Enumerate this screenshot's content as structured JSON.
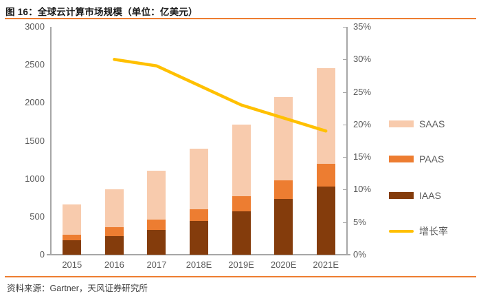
{
  "header": {
    "title": "图 16：全球云计算市场规模（单位：亿美元）"
  },
  "footer": {
    "source": "资料来源：Gartner，天风证券研究所"
  },
  "colors": {
    "saas": "#F8CBAD",
    "paas": "#ED7D31",
    "iaas": "#843C0C",
    "growth_line": "#FFC000",
    "axis": "#A6A6A6",
    "tick_label": "#595959",
    "accent_rule": "#ED7D31"
  },
  "chart_data": {
    "type": "bar",
    "subtype": "stacked-bars-with-line",
    "title": "图 16：全球云计算市场规模（单位：亿美元）",
    "categories": [
      "2015",
      "2016",
      "2017",
      "2018E",
      "2019E",
      "2020E",
      "2021E"
    ],
    "series": [
      {
        "name": "IAAS",
        "axis": "left",
        "color": "#843C0C",
        "values": [
          190,
          245,
          330,
          440,
          575,
          730,
          900
        ]
      },
      {
        "name": "PAAS",
        "axis": "left",
        "color": "#ED7D31",
        "values": [
          70,
          115,
          130,
          160,
          195,
          250,
          300
        ]
      },
      {
        "name": "SAAS",
        "axis": "left",
        "color": "#F8CBAD",
        "values": [
          400,
          505,
          645,
          800,
          940,
          1095,
          1260
        ]
      }
    ],
    "totals": [
      660,
      865,
      1105,
      1400,
      1710,
      2075,
      2460
    ],
    "line_series": {
      "name": "增长率",
      "axis": "right",
      "color": "#FFC000",
      "values": [
        null,
        30,
        29,
        26,
        23,
        21,
        19
      ],
      "unit": "%"
    },
    "left_axis": {
      "min": 0,
      "max": 3000,
      "step": 500,
      "tick_labels": [
        "0",
        "500",
        "1000",
        "1500",
        "2000",
        "2500",
        "3000"
      ]
    },
    "right_axis": {
      "min": 0,
      "max": 35,
      "step": 5,
      "tick_labels": [
        "0%",
        "5%",
        "10%",
        "15%",
        "20%",
        "25%",
        "30%",
        "35%"
      ]
    },
    "legend": [
      "SAAS",
      "PAAS",
      "IAAS",
      "增长率"
    ],
    "legend_position": "right",
    "grid": false
  }
}
